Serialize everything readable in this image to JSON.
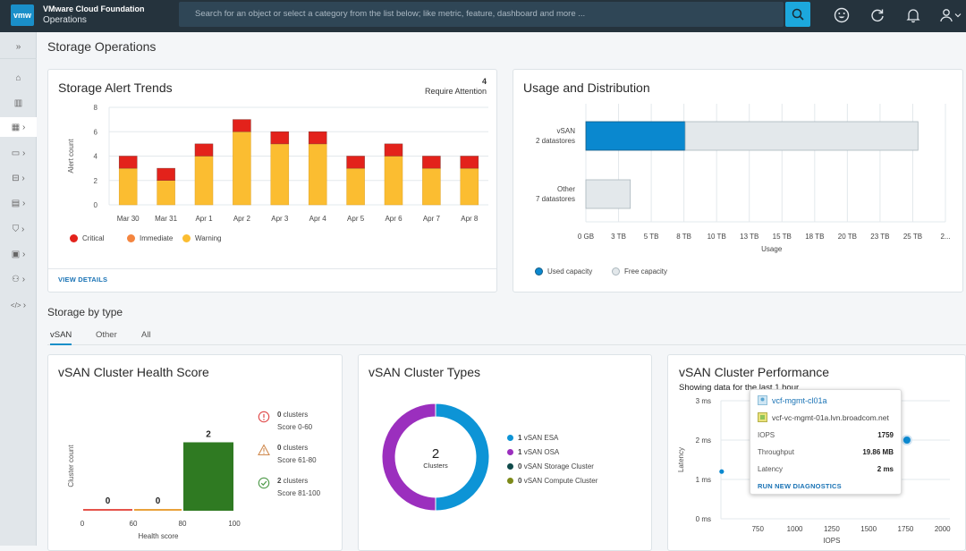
{
  "header": {
    "logo_text": "vmw",
    "product_line1": "VMware Cloud Foundation",
    "product_line2": "Operations",
    "search_placeholder": "Search for an object or select a category from the list below; like metric, feature, dashboard and more ...",
    "icons": [
      "search-icon",
      "smiley-icon",
      "refresh-icon",
      "bell-icon",
      "user-icon"
    ]
  },
  "sidebar": {
    "collapse_icon": "»",
    "items": [
      {
        "name": "home",
        "icon": "⌂",
        "chevron": ""
      },
      {
        "name": "inventory",
        "icon": "▥",
        "chevron": ""
      },
      {
        "name": "infrastructure",
        "icon": "▦",
        "chevron": "›",
        "active": true
      },
      {
        "name": "applications",
        "icon": "▭",
        "chevron": "›"
      },
      {
        "name": "operations",
        "icon": "⊟",
        "chevron": "›"
      },
      {
        "name": "reports",
        "icon": "▤",
        "chevron": "›"
      },
      {
        "name": "security",
        "icon": "⛉",
        "chevron": "›"
      },
      {
        "name": "configure",
        "icon": "▣",
        "chevron": "›"
      },
      {
        "name": "administration",
        "icon": "⚇",
        "chevron": "›"
      },
      {
        "name": "developer",
        "icon": "</>",
        "chevron": "›"
      }
    ]
  },
  "page": {
    "title": "Storage Operations"
  },
  "alert_trends": {
    "title": "Storage Alert Trends",
    "attention_count": "4",
    "attention_label": "Require Attention",
    "view_details": "VIEW DETAILS"
  },
  "usage": {
    "title": "Usage and Distribution"
  },
  "storage_by_type": {
    "title": "Storage by type",
    "tabs": [
      "vSAN",
      "Other",
      "All"
    ],
    "active_tab": "vSAN"
  },
  "health": {
    "title": "vSAN Cluster Health Score",
    "legend": [
      {
        "count": "0",
        "unit": " clusters",
        "range": "Score 0-60",
        "icon": "error-icon",
        "color": "#e04848"
      },
      {
        "count": "0",
        "unit": " clusters",
        "range": "Score 61-80",
        "icon": "warning-icon",
        "color": "#d08a4e"
      },
      {
        "count": "2",
        "unit": " clusters",
        "range": "Score 81-100",
        "icon": "check-circle-icon",
        "color": "#4f9a4a"
      }
    ]
  },
  "types": {
    "title": "vSAN Cluster Types",
    "center_value": "2",
    "center_label": "Clusters"
  },
  "performance": {
    "title": "vSAN Cluster Performance",
    "subtitle": "Showing data for the last 1 hour",
    "tooltip": {
      "cluster": "vcf-mgmt-cl01a",
      "vcenter": "vcf-vc-mgmt-01a.lvn.broadcom.net",
      "rows": [
        {
          "label": "IOPS",
          "value": "1759"
        },
        {
          "label": "Throughput",
          "value": "19.86 MB"
        },
        {
          "label": "Latency",
          "value": "2 ms"
        }
      ],
      "action": "RUN NEW DIAGNOSTICS"
    }
  },
  "chart_data": [
    {
      "id": "alert_trends",
      "type": "bar",
      "stacked": true,
      "title": "Storage Alert Trends",
      "xlabel": "",
      "ylabel": "Alert count",
      "ylim": [
        0,
        8
      ],
      "yticks": [
        0,
        2,
        4,
        6,
        8
      ],
      "grid": true,
      "legend_position": "bottom-left",
      "categories": [
        "Mar 30",
        "Mar 31",
        "Apr 1",
        "Apr 2",
        "Apr 3",
        "Apr 4",
        "Apr 5",
        "Apr 6",
        "Apr 7",
        "Apr 8"
      ],
      "series": [
        {
          "name": "Warning",
          "color": "#fbbd31",
          "values": [
            3,
            2,
            4,
            6,
            5,
            5,
            3,
            4,
            3,
            3
          ]
        },
        {
          "name": "Immediate",
          "color": "#f4853f",
          "values": [
            0,
            0,
            0,
            0,
            0,
            0,
            0,
            0,
            0,
            0
          ]
        },
        {
          "name": "Critical",
          "color": "#e3221b",
          "values": [
            1,
            1,
            1,
            1,
            1,
            1,
            1,
            1,
            1,
            1
          ]
        }
      ],
      "legend": [
        {
          "name": "Critical",
          "color": "#e3221b"
        },
        {
          "name": "Immediate",
          "color": "#f4853f"
        },
        {
          "name": "Warning",
          "color": "#fbbd31"
        }
      ]
    },
    {
      "id": "usage",
      "type": "bar",
      "orientation": "horizontal",
      "stacked": true,
      "title": "Usage and Distribution",
      "xlabel": "Usage",
      "unit": "TB",
      "xlim": [
        0,
        27.5
      ],
      "xtick_labels": [
        "0 GB",
        "3 TB",
        "5 TB",
        "8 TB",
        "10 TB",
        "13 TB",
        "15 TB",
        "18 TB",
        "20 TB",
        "23 TB",
        "25 TB",
        "2..."
      ],
      "xtick_values": [
        0,
        2.5,
        5,
        7.5,
        10,
        12.5,
        15,
        17.5,
        20,
        22.5,
        25,
        27.5
      ],
      "categories": [
        [
          "vSAN",
          "2 datastores"
        ],
        [
          "Other",
          "7 datastores"
        ]
      ],
      "series": [
        {
          "name": "Used capacity",
          "color": "#0a88cf",
          "values": [
            7.6,
            0
          ]
        },
        {
          "name": "Free capacity",
          "color": "#e3e8eb",
          "values": [
            17.8,
            3.4
          ]
        }
      ],
      "legend_position": "bottom-left"
    },
    {
      "id": "health",
      "type": "bar",
      "title": "vSAN Cluster Health Score",
      "xlabel": "Health score",
      "ylabel": "Cluster count",
      "xtick_labels": [
        "0",
        "60",
        "80",
        "100"
      ],
      "categories": [
        "0-60",
        "61-80",
        "81-100"
      ],
      "bin_edges": [
        0,
        60,
        80,
        100
      ],
      "values": [
        0,
        0,
        2
      ],
      "colors": [
        "#e5534b",
        "#e9a23b",
        "#2f7a22"
      ],
      "ylim": [
        0,
        2.3
      ]
    },
    {
      "id": "types",
      "type": "pie",
      "donut": true,
      "title": "vSAN Cluster Types",
      "labels": [
        "vSAN ESA",
        "vSAN OSA",
        "vSAN Storage Cluster",
        "vSAN Compute Cluster"
      ],
      "values": [
        1,
        1,
        0,
        0
      ],
      "colors": [
        "#0d94d6",
        "#9b2fbe",
        "#0f4a4a",
        "#7d8a19"
      ],
      "legend_position": "right"
    },
    {
      "id": "performance",
      "type": "scatter",
      "title": "vSAN Cluster Performance",
      "xlabel": "IOPS",
      "ylabel": "Latency",
      "xlim": [
        500,
        2050
      ],
      "ylim": [
        0,
        3
      ],
      "xticks": [
        750,
        1000,
        1250,
        1500,
        1750,
        2000
      ],
      "yticks": [
        0,
        1,
        2,
        3
      ],
      "ytick_labels": [
        "0 ms",
        "1 ms",
        "2 ms",
        "3 ms"
      ],
      "points": [
        {
          "x": 505,
          "y": 1.2,
          "label": ""
        },
        {
          "x": 1759,
          "y": 2,
          "label": "vcf-mgmt-cl01a",
          "highlighted": true
        }
      ],
      "color": "#0a88cf"
    }
  ]
}
